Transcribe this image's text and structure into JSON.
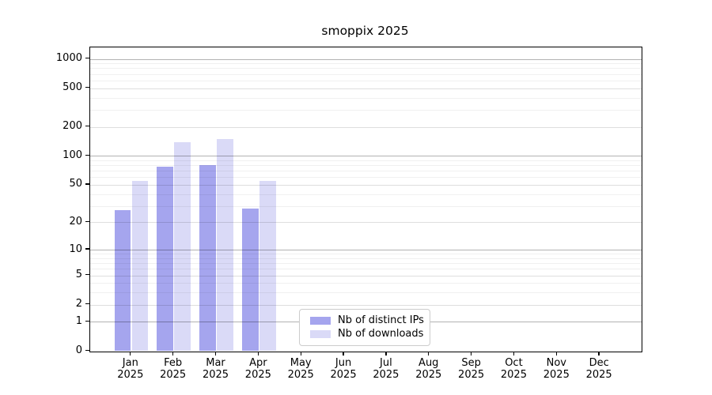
{
  "chart_data": {
    "type": "bar",
    "title": "smoppix 2025",
    "categories": [
      "Jan",
      "Feb",
      "Mar",
      "Apr",
      "May",
      "Jun",
      "Jul",
      "Aug",
      "Sep",
      "Oct",
      "Nov",
      "Dec"
    ],
    "x_year_label": "2025",
    "series": [
      {
        "name": "Nb of distinct IPs",
        "color": "#a5a5ee",
        "values": [
          27,
          78,
          81,
          28,
          0,
          0,
          0,
          0,
          0,
          0,
          0,
          0
        ]
      },
      {
        "name": "Nb of downloads",
        "color": "#dadaf7",
        "values": [
          55,
          140,
          150,
          55,
          0,
          0,
          0,
          0,
          0,
          0,
          0,
          0
        ]
      }
    ],
    "xlabel": "",
    "ylabel": "",
    "yscale": "log1p",
    "ytick_values": [
      0,
      1,
      2,
      5,
      10,
      20,
      50,
      100,
      200,
      500,
      1000
    ],
    "ytick_labels": [
      "0",
      "1",
      "2",
      "5",
      "10",
      "20",
      "50",
      "100",
      "200",
      "500",
      "1000"
    ],
    "ylim": [
      0,
      1312
    ],
    "grid": {
      "orientation": "horizontal",
      "decade_line_color": "rgba(0,0,0,0.30)",
      "major_line_color": "rgba(0,0,0,0.13)",
      "minor_line_color": "rgba(0,0,0,0.06)"
    },
    "legend": {
      "position": "inside-lower-center",
      "entries": [
        "Nb of distinct IPs",
        "Nb of downloads"
      ]
    }
  }
}
